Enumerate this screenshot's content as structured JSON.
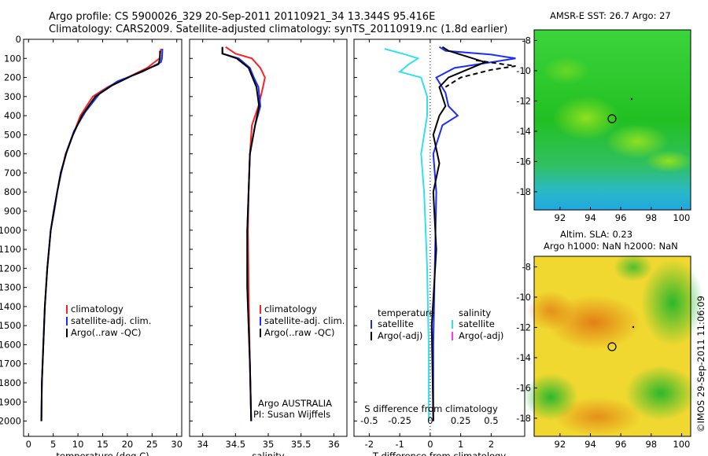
{
  "header": {
    "line1": "Argo profile: CS 5900026_329 20-Sep-2011 20110921_34 13.344S 95.416E",
    "line2": "Climatology: CARS2009. Satellite-adjusted climatology: synTS_20110919.nc (1.8d earlier)"
  },
  "colors": {
    "climatology": "#ff2020",
    "satellite": "#1a2cff",
    "argo": "#000000",
    "sat_salinity": "#33e0f0",
    "argo_adj_salinity": "#ff33ff"
  },
  "chart_data": [
    {
      "type": "line",
      "id": "temperature",
      "xlabel": "temperature (deg C)",
      "ylabel": "",
      "xlim": [
        -1,
        31
      ],
      "ylim": [
        2080,
        0
      ],
      "xticks": [
        0,
        5,
        10,
        15,
        20,
        25,
        30
      ],
      "yticks": [
        0,
        100,
        200,
        300,
        400,
        500,
        600,
        700,
        800,
        900,
        1000,
        1100,
        1200,
        1300,
        1400,
        1500,
        1600,
        1700,
        1800,
        1900,
        2000
      ],
      "legend": [
        "climatology",
        "satellite-adj. clim.",
        "Argo(..raw -QC)"
      ],
      "series": [
        {
          "name": "climatology",
          "color": "#ff2020",
          "x": [
            26.8,
            26.5,
            24,
            20,
            16,
            13,
            10.5,
            9,
            7.5,
            6.6,
            5.8,
            5.2,
            4.5,
            3.8,
            3.3,
            3,
            2.7,
            2.6
          ],
          "y": [
            50,
            100,
            150,
            200,
            250,
            300,
            400,
            500,
            600,
            700,
            800,
            900,
            1000,
            1200,
            1400,
            1600,
            1800,
            2000
          ]
        },
        {
          "name": "satellite-adj. clim.",
          "color": "#1a2cff",
          "x": [
            27.1,
            27,
            26.8,
            23,
            18,
            14.5,
            11.5,
            9.2,
            7.8,
            6.6,
            5.8,
            5.2,
            4.5,
            3.8,
            3.3,
            3,
            2.7,
            2.6
          ],
          "y": [
            50,
            100,
            120,
            170,
            220,
            280,
            380,
            480,
            580,
            700,
            800,
            900,
            1000,
            1200,
            1400,
            1600,
            1800,
            2000
          ]
        },
        {
          "name": "Argo(..raw -QC)",
          "color": "#000000",
          "x": [
            26.6,
            26.6,
            26.3,
            21,
            17,
            13.5,
            10.8,
            9,
            7.6,
            6.5,
            5.8,
            5.1,
            4.5,
            3.8,
            3.3,
            3,
            2.7,
            2.6
          ],
          "y": [
            60,
            100,
            130,
            190,
            240,
            300,
            400,
            500,
            600,
            700,
            800,
            900,
            1000,
            1200,
            1400,
            1600,
            1800,
            2000
          ]
        }
      ]
    },
    {
      "type": "line",
      "id": "salinity",
      "xlabel": "salinity",
      "ylabel": "",
      "xlim": [
        33.8,
        36.2
      ],
      "ylim": [
        2080,
        0
      ],
      "xticks": [
        34,
        34.5,
        35,
        35.5,
        36
      ],
      "legend": [
        "climatology",
        "satellite-adj. clim.",
        "Argo(..raw -QC)"
      ],
      "annotation": [
        "Argo AUSTRALIA",
        "PI: Susan Wijffels"
      ],
      "series": [
        {
          "name": "climatology",
          "color": "#ff2020",
          "x": [
            34.35,
            34.5,
            34.75,
            34.88,
            34.95,
            34.92,
            34.85,
            34.75,
            34.72,
            34.7,
            34.69,
            34.7,
            34.72,
            34.74
          ],
          "y": [
            40,
            75,
            100,
            150,
            200,
            250,
            350,
            450,
            600,
            800,
            1000,
            1300,
            1700,
            2000
          ]
        },
        {
          "name": "satellite-adj. clim.",
          "color": "#1a2cff",
          "x": [
            34.3,
            34.3,
            34.55,
            34.72,
            34.78,
            34.85,
            34.88,
            34.8,
            34.72,
            34.7,
            34.68,
            34.68,
            34.72,
            34.74
          ],
          "y": [
            40,
            75,
            100,
            150,
            200,
            250,
            350,
            450,
            600,
            800,
            1000,
            1300,
            1700,
            2000
          ]
        },
        {
          "name": "Argo(..raw -QC)",
          "color": "#000000",
          "x": [
            34.3,
            34.3,
            34.52,
            34.7,
            34.76,
            34.82,
            34.86,
            34.8,
            34.72,
            34.7,
            34.68,
            34.68,
            34.72,
            34.74
          ],
          "y": [
            40,
            75,
            100,
            150,
            200,
            250,
            350,
            450,
            600,
            800,
            1000,
            1300,
            1700,
            2000
          ]
        }
      ]
    },
    {
      "type": "line",
      "id": "difference",
      "xlabel": "T difference from climatology",
      "xlabel_top": "S difference from climatology",
      "xlim": [
        -2.5,
        3.1
      ],
      "ylim": [
        2080,
        0
      ],
      "xticks": [
        -2,
        -1,
        0,
        1,
        2
      ],
      "xticks_s": [
        {
          "v": -0.5,
          "label": "-0.5"
        },
        {
          "v": -0.25,
          "label": "-0.25"
        },
        {
          "v": 0,
          "label": "0"
        },
        {
          "v": 0.25,
          "label": "0.25"
        },
        {
          "v": 0.5,
          "label": "0.5"
        }
      ],
      "legend_left_title": "temperature",
      "legend_right_title": "salinity",
      "legend_left": [
        "satellite",
        "Argo(-adj)"
      ],
      "legend_right": [
        "satellite",
        "Argo(-adj)"
      ],
      "series": [
        {
          "name": "temperature satellite",
          "color": "#1a2cff",
          "x": [
            0.3,
            0.5,
            2,
            2.8,
            0.8,
            0.2,
            0.5,
            0.6,
            0.9,
            0.4,
            0.1,
            0.2,
            0.15,
            0.1,
            0.1
          ],
          "y": [
            40,
            60,
            80,
            100,
            150,
            200,
            280,
            350,
            400,
            450,
            600,
            800,
            1200,
            1600,
            2000
          ]
        },
        {
          "name": "temperature Argo",
          "color": "#000000",
          "x": [
            0.4,
            0.6,
            1,
            1.8,
            1.2,
            0.6,
            0.3,
            0.5,
            0.3,
            0.1,
            0.3,
            0.1,
            0.2,
            0.05,
            0.1
          ],
          "y": [
            40,
            60,
            80,
            120,
            160,
            200,
            250,
            350,
            400,
            500,
            650,
            800,
            1100,
            1500,
            2000
          ]
        },
        {
          "name": "temperature Argo dashed",
          "color": "#000000",
          "dash": true,
          "x": [
            1.5,
            2.8,
            2,
            1,
            0.5
          ],
          "y": [
            110,
            140,
            160,
            200,
            250
          ]
        },
        {
          "name": "salinity satellite",
          "color": "#33e0f0",
          "x": [
            -1.5,
            -0.8,
            -0.4,
            -0.7,
            -1,
            -0.3,
            -0.1,
            -0.1,
            -0.3,
            -0.2,
            -0.1,
            -0.05,
            -0.05
          ],
          "y": [
            50,
            80,
            100,
            130,
            170,
            200,
            300,
            400,
            600,
            800,
            1200,
            1600,
            2000
          ]
        }
      ]
    }
  ],
  "maps": [
    {
      "title": "AMSR-E SST: 26.7  Argo: 27",
      "xticks": [
        92,
        94,
        96,
        98,
        100
      ],
      "yticks": [
        -8,
        -10,
        -12,
        -14,
        -16,
        -18
      ],
      "marker": {
        "lon": 95.4,
        "lat": -13.3
      }
    },
    {
      "title_line1": "Altim. SLA: 0.23",
      "title_line2": "Argo h1000: NaN h2000: NaN",
      "xticks": [
        92,
        94,
        96,
        98,
        100
      ],
      "yticks": [
        -8,
        -10,
        -12,
        -14,
        -16,
        -18
      ],
      "marker": {
        "lon": 95.4,
        "lat": -13.3
      }
    }
  ],
  "footer_stamp": "©IMOS 29-Sep-2011 11:06:09"
}
